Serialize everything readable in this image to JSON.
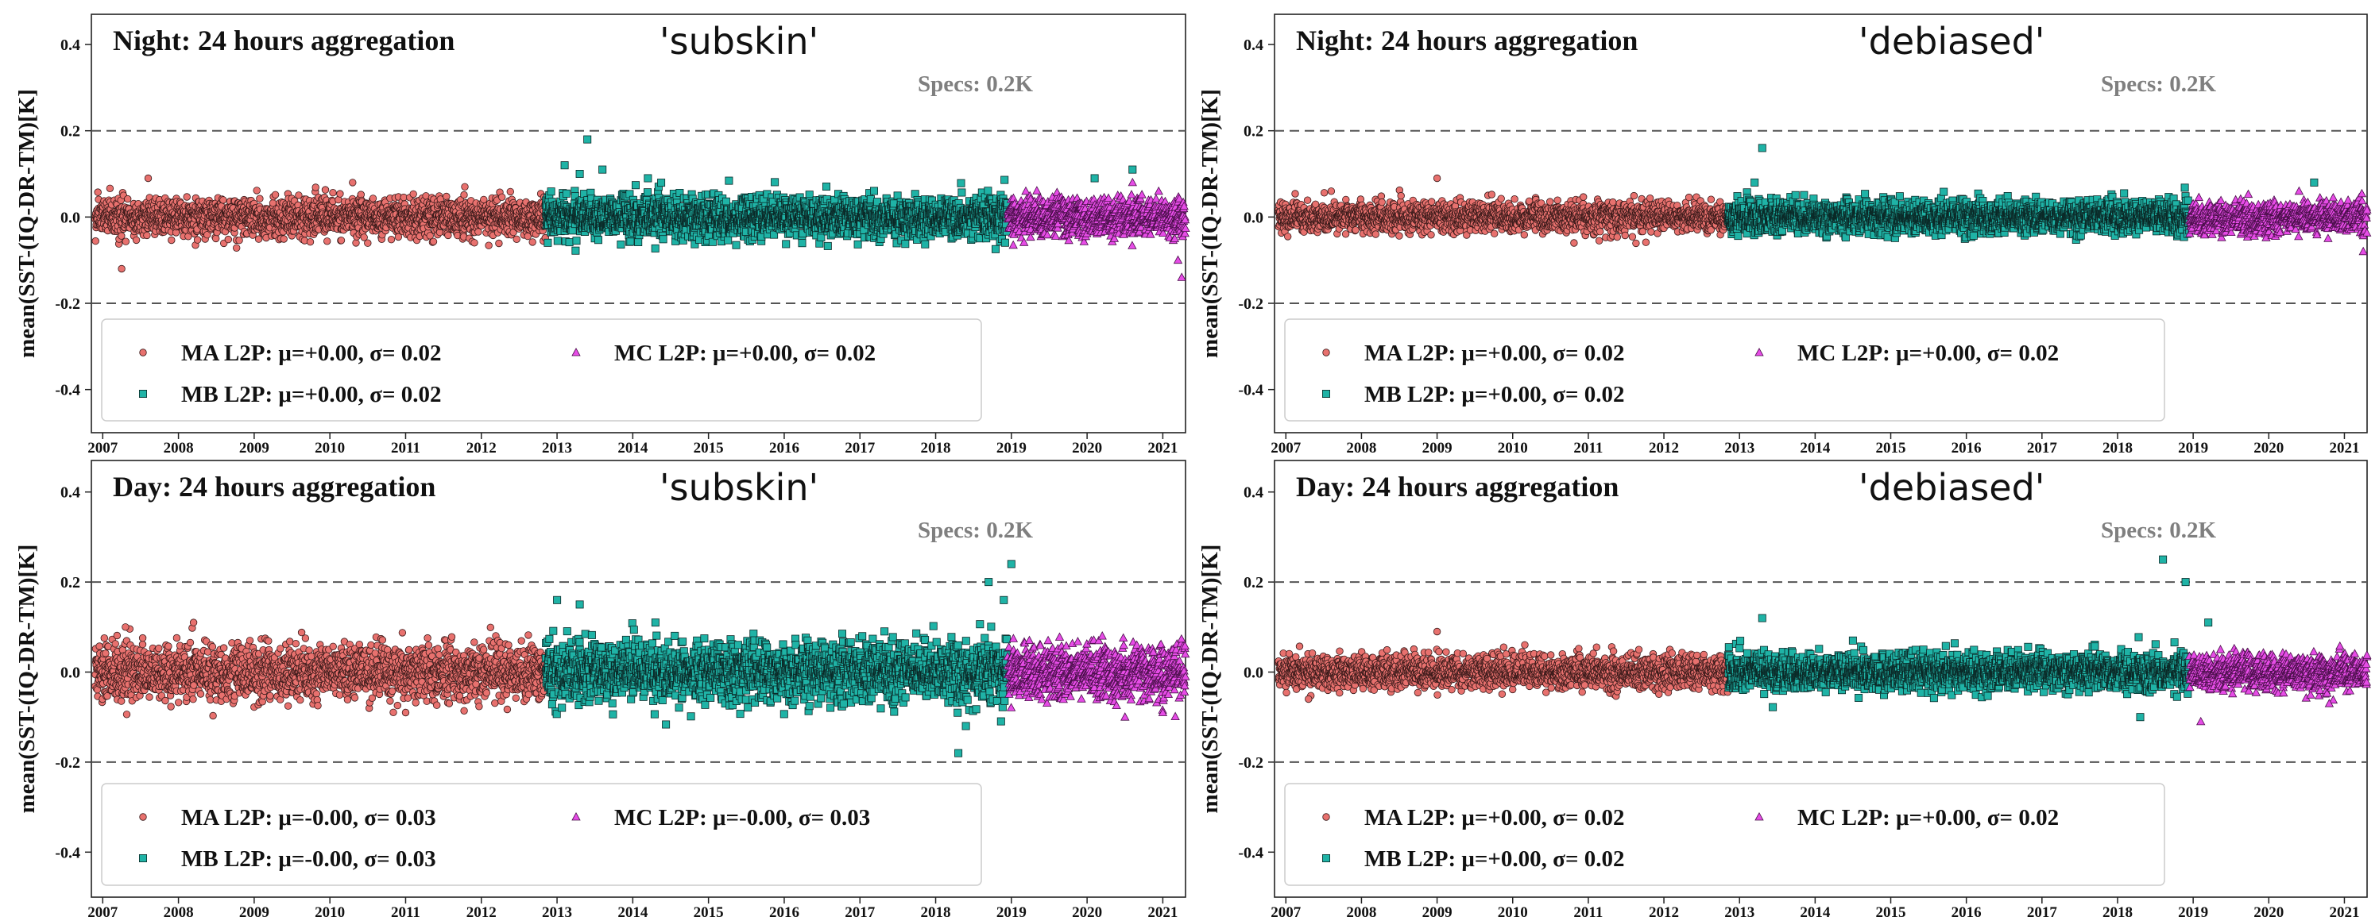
{
  "figure": {
    "ylabel": "mean(SST-(IQ-DR-TM)[K]",
    "specs_label": "Specs: 0.2K",
    "colors": {
      "ma": "#e8716e",
      "mb": "#1fb3a6",
      "mc": "#e64ce6",
      "spec_line": "#555555",
      "spec_text": "#7f7f7f"
    }
  },
  "chart_data": [
    {
      "type": "scatter",
      "title": "Night: 24 hours aggregation",
      "variant": "'subskin'",
      "ylabel": "mean(SST-(IQ-DR-TM)[K]",
      "xlim": [
        2006.85,
        2021.3
      ],
      "ylim": [
        -0.5,
        0.47
      ],
      "yticks": [
        "-0.4",
        "-0.2",
        "0.0",
        "0.2",
        "0.4"
      ],
      "ytick_values": [
        -0.4,
        -0.2,
        0.0,
        0.2,
        0.4
      ],
      "xticks": [
        "2007",
        "2008",
        "2009",
        "2010",
        "2011",
        "2012",
        "2013",
        "2014",
        "2015",
        "2016",
        "2017",
        "2018",
        "2019",
        "2020",
        "2021"
      ],
      "spec_threshold": 0.2,
      "series": [
        {
          "name": "MA L2P",
          "mu": "+0.00",
          "sigma": "0.02",
          "marker": "circle",
          "period": [
            2006.9,
            2012.85
          ],
          "spread": 0.022,
          "outliers": [
            [
              2007.25,
              -0.12
            ],
            [
              2007.6,
              0.09
            ],
            [
              2010.3,
              0.08
            ]
          ]
        },
        {
          "name": "MB L2P",
          "mu": "+0.00",
          "sigma": "0.02",
          "marker": "square",
          "period": [
            2012.85,
            2018.95
          ],
          "spread": 0.024,
          "outliers": [
            [
              2013.4,
              0.18
            ],
            [
              2013.1,
              0.12
            ],
            [
              2013.3,
              0.1
            ],
            [
              2013.6,
              0.11
            ],
            [
              2014.2,
              0.09
            ],
            [
              2020.6,
              0.11
            ],
            [
              2020.1,
              0.09
            ]
          ]
        },
        {
          "name": "MC L2P",
          "mu": "+0.00",
          "sigma": "0.02",
          "marker": "triangle",
          "period": [
            2018.95,
            2021.3
          ],
          "spread": 0.022,
          "outliers": [
            [
              2021.25,
              -0.14
            ],
            [
              2021.2,
              -0.1
            ],
            [
              2020.6,
              0.08
            ]
          ]
        }
      ],
      "legend": {
        "ma": "MA L2P: μ=+0.00, σ= 0.02",
        "mb": "MB L2P: μ=+0.00, σ= 0.02",
        "mc": "MC L2P: μ=+0.00, σ= 0.02"
      }
    },
    {
      "type": "scatter",
      "title": "Night: 24 hours aggregation",
      "variant": "'debiased'",
      "ylabel": "mean(SST-(IQ-DR-TM)[K]",
      "xlim": [
        2006.85,
        2021.3
      ],
      "ylim": [
        -0.5,
        0.47
      ],
      "yticks": [
        "-0.4",
        "-0.2",
        "0.0",
        "0.2",
        "0.4"
      ],
      "ytick_values": [
        -0.4,
        -0.2,
        0.0,
        0.2,
        0.4
      ],
      "xticks": [
        "2007",
        "2008",
        "2009",
        "2010",
        "2011",
        "2012",
        "2013",
        "2014",
        "2015",
        "2016",
        "2017",
        "2018",
        "2019",
        "2020",
        "2021"
      ],
      "spec_threshold": 0.2,
      "series": [
        {
          "name": "MA L2P",
          "mu": "+0.00",
          "sigma": "0.02",
          "marker": "circle",
          "period": [
            2006.9,
            2012.85
          ],
          "spread": 0.017,
          "outliers": [
            [
              2009.0,
              0.09
            ],
            [
              2007.6,
              0.06
            ]
          ]
        },
        {
          "name": "MB L2P",
          "mu": "+0.00",
          "sigma": "0.02",
          "marker": "square",
          "period": [
            2012.85,
            2018.95
          ],
          "spread": 0.018,
          "outliers": [
            [
              2013.3,
              0.16
            ],
            [
              2013.2,
              0.08
            ],
            [
              2020.6,
              0.08
            ]
          ]
        },
        {
          "name": "MC L2P",
          "mu": "+0.00",
          "sigma": "0.02",
          "marker": "triangle",
          "period": [
            2018.95,
            2021.3
          ],
          "spread": 0.018,
          "outliers": [
            [
              2021.25,
              -0.08
            ],
            [
              2020.4,
              0.06
            ]
          ]
        }
      ],
      "legend": {
        "ma": "MA L2P: μ=+0.00, σ= 0.02",
        "mb": "MB L2P: μ=+0.00, σ= 0.02",
        "mc": "MC L2P: μ=+0.00, σ= 0.02"
      }
    },
    {
      "type": "scatter",
      "title": "Day: 24 hours aggregation",
      "variant": "'subskin'",
      "ylabel": "mean(SST-(IQ-DR-TM)[K]",
      "xlim": [
        2006.85,
        2021.3
      ],
      "ylim": [
        -0.5,
        0.47
      ],
      "yticks": [
        "-0.4",
        "-0.2",
        "0.0",
        "0.2",
        "0.4"
      ],
      "ytick_values": [
        -0.4,
        -0.2,
        0.0,
        0.2,
        0.4
      ],
      "xticks": [
        "2007",
        "2008",
        "2009",
        "2010",
        "2011",
        "2012",
        "2013",
        "2014",
        "2015",
        "2016",
        "2017",
        "2018",
        "2019",
        "2020",
        "2021"
      ],
      "spec_threshold": 0.2,
      "series": [
        {
          "name": "MA L2P",
          "mu": "-0.00",
          "sigma": "0.03",
          "marker": "circle",
          "period": [
            2006.9,
            2012.85
          ],
          "spread": 0.03,
          "outliers": [
            [
              2007.3,
              0.1
            ],
            [
              2008.2,
              0.11
            ],
            [
              2011.0,
              -0.09
            ]
          ]
        },
        {
          "name": "MB L2P",
          "mu": "-0.00",
          "sigma": "0.03",
          "marker": "square",
          "period": [
            2012.85,
            2018.95
          ],
          "spread": 0.033,
          "outliers": [
            [
              2013.0,
              0.16
            ],
            [
              2013.3,
              0.15
            ],
            [
              2018.7,
              0.2
            ],
            [
              2018.3,
              -0.18
            ],
            [
              2018.4,
              -0.12
            ],
            [
              2018.9,
              0.16
            ],
            [
              2019.0,
              0.24
            ],
            [
              2014.3,
              0.11
            ]
          ]
        },
        {
          "name": "MC L2P",
          "mu": "-0.00",
          "sigma": "0.03",
          "marker": "triangle",
          "period": [
            2018.95,
            2021.3
          ],
          "spread": 0.03,
          "outliers": [
            [
              2020.5,
              -0.1
            ],
            [
              2021.0,
              -0.09
            ],
            [
              2020.2,
              0.08
            ]
          ]
        }
      ],
      "legend": {
        "ma": "MA L2P: μ=-0.00, σ= 0.03",
        "mb": "MB L2P: μ=-0.00, σ= 0.03",
        "mc": "MC L2P: μ=-0.00, σ= 0.03"
      }
    },
    {
      "type": "scatter",
      "title": "Day: 24 hours aggregation",
      "variant": "'debiased'",
      "ylabel": "mean(SST-(IQ-DR-TM)[K]",
      "xlim": [
        2006.85,
        2021.3
      ],
      "ylim": [
        -0.5,
        0.47
      ],
      "yticks": [
        "-0.4",
        "-0.2",
        "0.0",
        "0.2",
        "0.4"
      ],
      "ytick_values": [
        -0.4,
        -0.2,
        0.0,
        0.2,
        0.4
      ],
      "xticks": [
        "2007",
        "2008",
        "2009",
        "2010",
        "2011",
        "2012",
        "2013",
        "2014",
        "2015",
        "2016",
        "2017",
        "2018",
        "2019",
        "2020",
        "2021"
      ],
      "spec_threshold": 0.2,
      "series": [
        {
          "name": "MA L2P",
          "mu": "+0.00",
          "sigma": "0.02",
          "marker": "circle",
          "period": [
            2006.9,
            2012.85
          ],
          "spread": 0.018,
          "outliers": [
            [
              2009.0,
              0.09
            ],
            [
              2007.3,
              -0.06
            ]
          ]
        },
        {
          "name": "MB L2P",
          "mu": "+0.00",
          "sigma": "0.02",
          "marker": "square",
          "period": [
            2012.85,
            2018.95
          ],
          "spread": 0.02,
          "outliers": [
            [
              2013.3,
              0.12
            ],
            [
              2018.6,
              0.25
            ],
            [
              2018.9,
              0.2
            ],
            [
              2018.3,
              -0.1
            ],
            [
              2019.2,
              0.11
            ],
            [
              2014.5,
              0.07
            ]
          ]
        },
        {
          "name": "MC L2P",
          "mu": "+0.00",
          "sigma": "0.02",
          "marker": "triangle",
          "period": [
            2018.95,
            2021.3
          ],
          "spread": 0.02,
          "outliers": [
            [
              2020.8,
              -0.07
            ],
            [
              2019.1,
              -0.11
            ]
          ]
        }
      ],
      "legend": {
        "ma": "MA L2P: μ=+0.00, σ= 0.02",
        "mb": "MB L2P: μ=+0.00, σ= 0.02",
        "mc": "MC L2P: μ=+0.00, σ= 0.02"
      }
    }
  ]
}
